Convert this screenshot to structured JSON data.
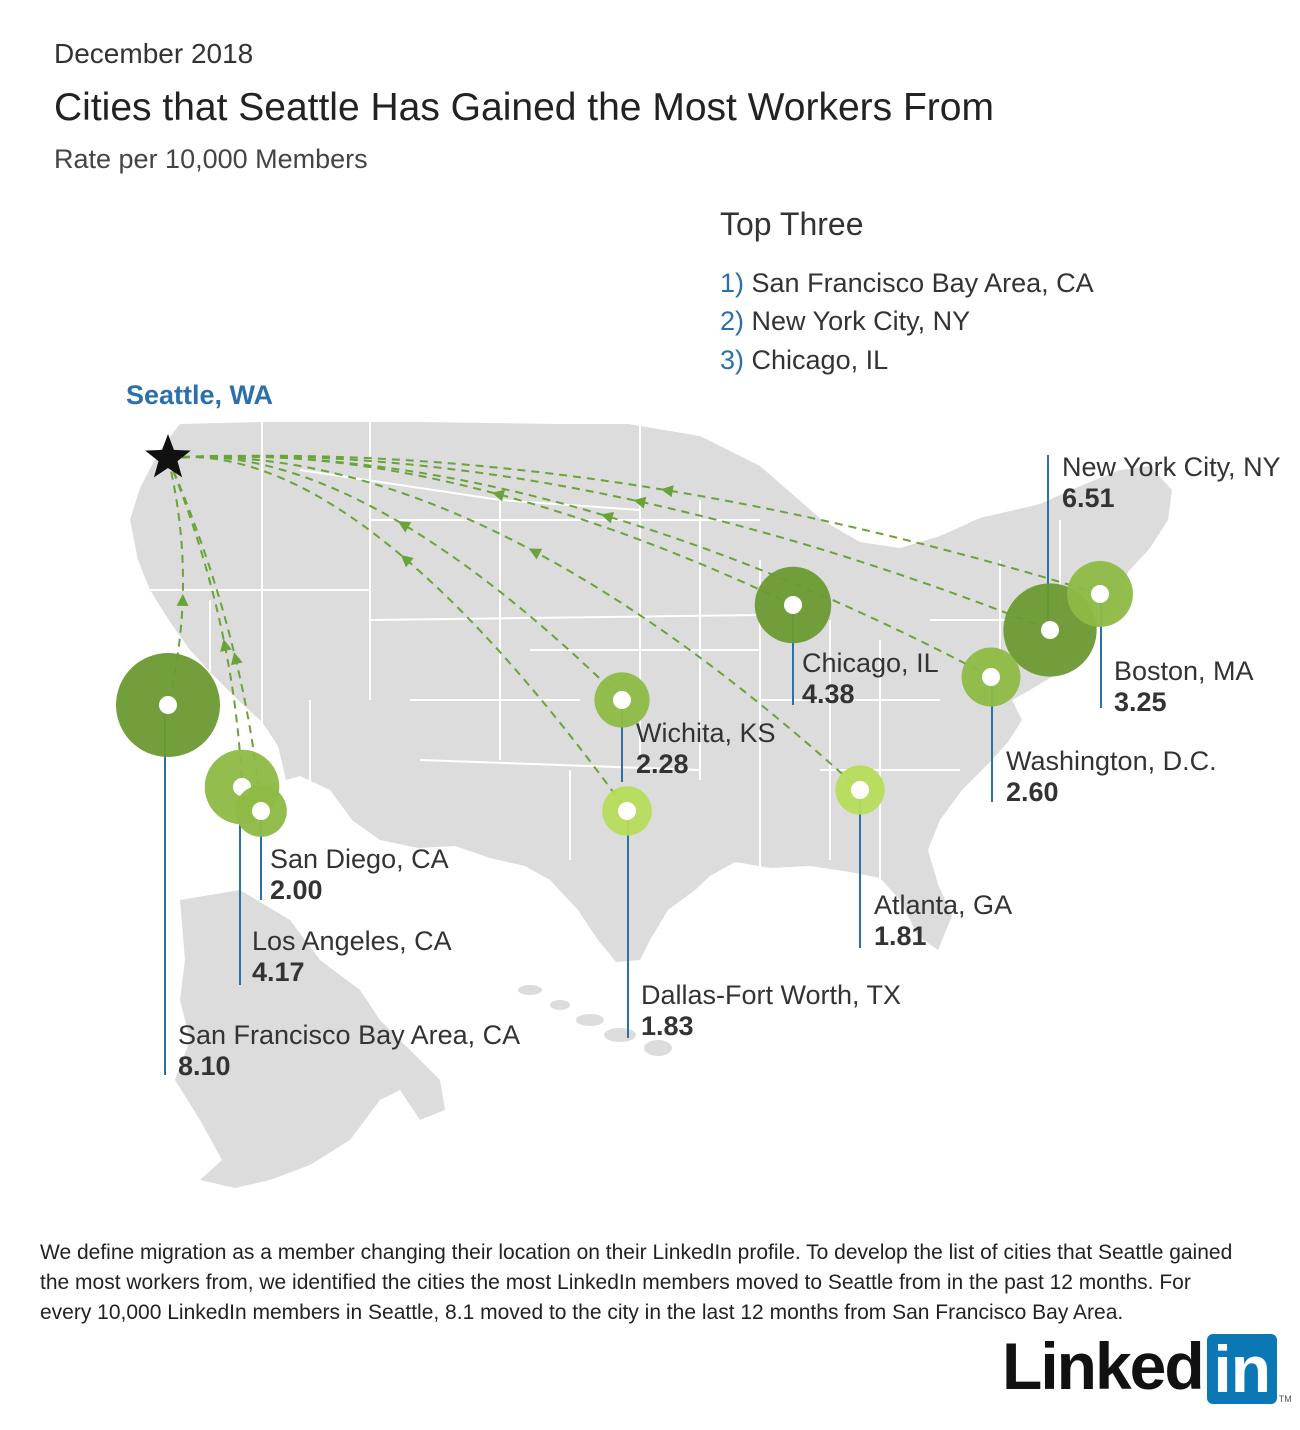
{
  "header": {
    "date": "December 2018",
    "title": "Cities that Seattle Has Gained the Most Workers From",
    "subtitle": "Rate per 10,000 Members"
  },
  "top_three": {
    "title": "Top Three",
    "items": [
      {
        "num": "1)",
        "name": "San Francisco Bay Area, CA"
      },
      {
        "num": "2)",
        "name": "New York City, NY"
      },
      {
        "num": "3)",
        "name": "Chicago, IL"
      }
    ]
  },
  "origin": {
    "label": "Seattle, WA",
    "marker": "star-icon"
  },
  "colors": {
    "land": "#dcdcdc",
    "border": "#ffffff",
    "arc": "#6aa33a",
    "large": "#6a9a32",
    "mid": "#8dbb45",
    "small": "#b5dc5a",
    "leader": "#2d6fa8"
  },
  "map_data": {
    "unit": "Rate per 10,000 Members",
    "cities": [
      {
        "name": "San Francisco Bay Area, CA",
        "value": "8.10",
        "rate": 8.1
      },
      {
        "name": "New York City, NY",
        "value": "6.51",
        "rate": 6.51
      },
      {
        "name": "Chicago, IL",
        "value": "4.38",
        "rate": 4.38
      },
      {
        "name": "Los Angeles, CA",
        "value": "4.17",
        "rate": 4.17
      },
      {
        "name": "Boston, MA",
        "value": "3.25",
        "rate": 3.25
      },
      {
        "name": "Washington, D.C.",
        "value": "2.60",
        "rate": 2.6
      },
      {
        "name": "Wichita, KS",
        "value": "2.28",
        "rate": 2.28
      },
      {
        "name": "San Diego, CA",
        "value": "2.00",
        "rate": 2.0
      },
      {
        "name": "Dallas-Fort Worth, TX",
        "value": "1.83",
        "rate": 1.83
      },
      {
        "name": "Atlanta, GA",
        "value": "1.81",
        "rate": 1.81
      }
    ]
  },
  "footnote": "We define migration as a member changing their location on their LinkedIn profile. To develop the list of cities that Seattle gained the most workers from, we identified the cities the most LinkedIn members moved to Seattle from in the past 12 months. For every 10,000 LinkedIn members in Seattle, 8.1 moved to the city in the last 12 months from San Francisco Bay Area.",
  "logo": {
    "text": "Linked",
    "box": "in",
    "tm": "TM"
  }
}
